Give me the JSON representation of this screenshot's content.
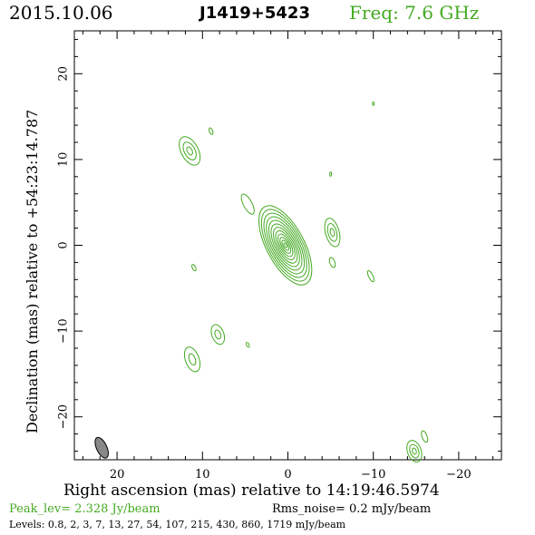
{
  "header": {
    "date": "2015.10.06",
    "source": "J1419+5423",
    "freq": "Freq: 7.6 GHz"
  },
  "footer": {
    "peak": "Peak_lev=  2.328 Jy/beam",
    "rms": "Rms_noise=  0.2 mJy/beam",
    "levels": "Levels: 0.8,   2,   3,   7,  13,  27,  54, 107, 215, 430, 860, 1719 mJy/beam"
  },
  "chart_data": {
    "type": "contour",
    "xlabel": "Right ascension (mas) relative to 14:19:46.5974",
    "ylabel": "Declination (mas) relative to +54:23:14.787",
    "xlim": [
      25,
      -25
    ],
    "ylim": [
      -25,
      25
    ],
    "xticks": [
      20,
      10,
      0,
      -10,
      -20
    ],
    "yticks": [
      20,
      10,
      0,
      -10,
      -20
    ],
    "contour_levels_mjy": [
      0.8,
      2,
      3,
      7,
      13,
      27,
      54,
      107,
      215,
      430,
      860,
      1719
    ],
    "colors": {
      "contour": "#44aa22",
      "beam": "#888888",
      "frame": "#000000"
    },
    "core": {
      "x": 0.3,
      "y": 0.0,
      "rx": 2.2,
      "ry": 5.1,
      "pa_deg": 28,
      "levels": 12
    },
    "components": [
      {
        "x": 11.5,
        "y": 11.0,
        "rx": 1.0,
        "ry": 1.8,
        "pa_deg": 28,
        "levels": 3
      },
      {
        "x": 9.0,
        "y": 13.3,
        "rx": 0.2,
        "ry": 0.4,
        "pa_deg": 20,
        "levels": 1
      },
      {
        "x": 4.7,
        "y": 4.8,
        "rx": 0.5,
        "ry": 1.3,
        "pa_deg": 28,
        "levels": 1
      },
      {
        "x": -5.2,
        "y": 1.5,
        "rx": 0.8,
        "ry": 1.7,
        "pa_deg": 15,
        "levels": 3
      },
      {
        "x": -5.2,
        "y": -2.0,
        "rx": 0.3,
        "ry": 0.6,
        "pa_deg": 20,
        "levels": 1
      },
      {
        "x": -9.7,
        "y": -3.6,
        "rx": 0.25,
        "ry": 0.7,
        "pa_deg": 25,
        "levels": 1
      },
      {
        "x": 8.2,
        "y": -10.4,
        "rx": 0.7,
        "ry": 1.2,
        "pa_deg": 20,
        "levels": 2
      },
      {
        "x": 11.2,
        "y": -13.3,
        "rx": 0.8,
        "ry": 1.5,
        "pa_deg": 20,
        "levels": 2
      },
      {
        "x": 11.0,
        "y": -2.6,
        "rx": 0.2,
        "ry": 0.4,
        "pa_deg": 25,
        "levels": 1
      },
      {
        "x": 4.7,
        "y": -11.6,
        "rx": 0.15,
        "ry": 0.3,
        "pa_deg": 25,
        "levels": 1
      },
      {
        "x": -5.0,
        "y": 8.3,
        "rx": 0.1,
        "ry": 0.25,
        "pa_deg": 0,
        "levels": 1
      },
      {
        "x": -10.0,
        "y": 16.5,
        "rx": 0.1,
        "ry": 0.2,
        "pa_deg": 0,
        "levels": 1
      },
      {
        "x": -16.0,
        "y": -22.3,
        "rx": 0.3,
        "ry": 0.7,
        "pa_deg": 20,
        "levels": 1
      },
      {
        "x": -14.8,
        "y": -24.0,
        "rx": 0.8,
        "ry": 1.3,
        "pa_deg": 20,
        "levels": 3
      }
    ],
    "beam": {
      "x": 21.8,
      "y": -23.6,
      "rx": 0.6,
      "ry": 1.3,
      "pa_deg": 25
    }
  }
}
